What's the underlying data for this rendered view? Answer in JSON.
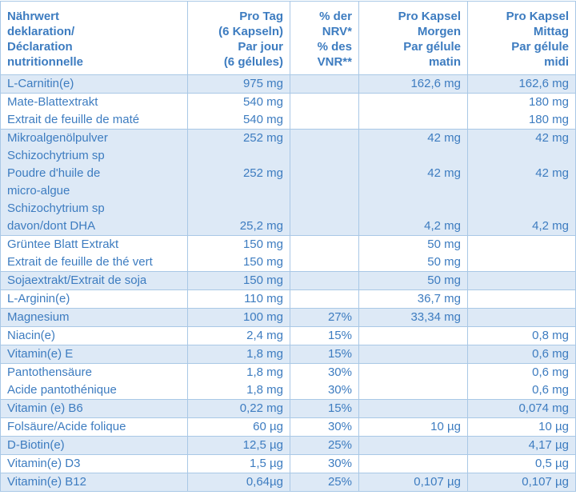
{
  "table": {
    "header": [
      [
        "Nährwert",
        "deklaration/",
        "Déclaration",
        "nutritionnelle"
      ],
      [
        "Pro Tag",
        "(6 Kapseln)",
        "Par jour",
        "(6 gélules)"
      ],
      [
        "% der",
        "NRV*",
        "% des",
        "VNR**"
      ],
      [
        "Pro Kapsel",
        "Morgen",
        "Par gélule",
        "matin"
      ],
      [
        "Pro Kapsel",
        "Mittag",
        "Par gélule",
        "midi"
      ]
    ],
    "groups": [
      [
        [
          "L-Carnitin(e)",
          "975 mg",
          null,
          "162,6 mg",
          "162,6 mg"
        ]
      ],
      [
        [
          "Mate-Blattextrakt",
          "540 mg",
          null,
          null,
          "180 mg"
        ],
        [
          "Extrait de feuille de maté",
          "540 mg",
          null,
          null,
          "180 mg"
        ]
      ],
      [
        [
          "Mikroalgenölpulver",
          "252 mg",
          null,
          "42 mg",
          "42 mg"
        ],
        [
          "Schizochytrium sp",
          null,
          null,
          null,
          null
        ],
        [
          "Poudre d'huile de",
          "252 mg",
          null,
          "42 mg",
          "42 mg"
        ],
        [
          "micro-algue",
          null,
          null,
          null,
          null
        ],
        [
          "Schizochytrium sp",
          null,
          null,
          null,
          null
        ],
        [
          "davon/dont DHA",
          "25,2 mg",
          null,
          "4,2 mg",
          "4,2 mg"
        ]
      ],
      [
        [
          "Grüntee Blatt Extrakt",
          "150 mg",
          null,
          "50 mg",
          null
        ],
        [
          "Extrait de feuille de thé vert",
          "150 mg",
          null,
          "50 mg",
          null
        ]
      ],
      [
        [
          "Sojaextrakt/Extrait de soja",
          "150 mg",
          null,
          "50 mg",
          null
        ]
      ],
      [
        [
          "L-Arginin(e)",
          "110 mg",
          null,
          "36,7 mg",
          null
        ]
      ],
      [
        [
          "Magnesium",
          "100 mg",
          "27%",
          "33,34 mg",
          null
        ]
      ],
      [
        [
          "Niacin(e)",
          "2,4 mg",
          "15%",
          null,
          "0,8 mg"
        ]
      ],
      [
        [
          "Vitamin(e) E",
          "1,8 mg",
          "15%",
          null,
          "0,6 mg"
        ]
      ],
      [
        [
          "Pantothensäure",
          "1,8 mg",
          "30%",
          null,
          "0,6 mg"
        ],
        [
          "Acide pantothénique",
          "1,8 mg",
          "30%",
          null,
          "0,6 mg"
        ]
      ],
      [
        [
          "Vitamin (e) B6",
          "0,22 mg",
          "15%",
          null,
          "0,074 mg"
        ]
      ],
      [
        [
          "Folsäure/Acide folique",
          "60 µg",
          "30%",
          "10 µg",
          "10 µg"
        ]
      ],
      [
        [
          "D-Biotin(e)",
          "12,5 µg",
          "25%",
          null,
          "4,17 µg"
        ]
      ],
      [
        [
          "Vitamin(e) D3",
          "1,5 µg",
          "30%",
          null,
          "0,5 µg"
        ]
      ],
      [
        [
          "Vitamin(e) B12",
          "0,64µg",
          "25%",
          "0,107 µg",
          "0,107 µg"
        ]
      ]
    ]
  }
}
